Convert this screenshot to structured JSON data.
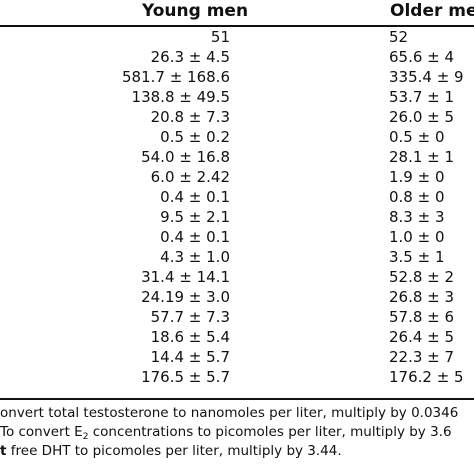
{
  "columns": {
    "young": "Young men",
    "older": "Older me"
  },
  "rows": [
    {
      "young": "51",
      "older": "52"
    },
    {
      "young": "26.3 ± 4.5",
      "older": "65.6 ± 4"
    },
    {
      "young": "581.7 ± 168.6",
      "older": "335.4 ± 9"
    },
    {
      "young": "138.8 ± 49.5",
      "older": "53.7 ± 1"
    },
    {
      "young": "20.8 ± 7.3",
      "older": "26.0 ± 5"
    },
    {
      "young": "0.5 ± 0.2",
      "older": "0.5 ± 0"
    },
    {
      "young": "54.0 ± 16.8",
      "older": "28.1 ± 1"
    },
    {
      "young": "6.0 ± 2.42",
      "older": "1.9 ± 0"
    },
    {
      "young": "0.4 ± 0.1",
      "older": "0.8 ± 0"
    },
    {
      "young": "9.5 ± 2.1",
      "older": "8.3 ± 3"
    },
    {
      "young": "0.4 ± 0.1",
      "older": "1.0 ± 0"
    },
    {
      "young": "4.3 ± 1.0",
      "older": "3.5 ± 1"
    },
    {
      "young": "31.4 ± 14.1",
      "older": "52.8 ± 2"
    },
    {
      "young": "24.19 ± 3.0",
      "older": "26.8 ± 3"
    },
    {
      "young": "57.7 ± 7.3",
      "older": "57.8 ± 6"
    },
    {
      "young": "18.6 ± 5.4",
      "older": "26.4 ± 5"
    },
    {
      "young": "14.4 ± 5.7",
      "older": "22.3 ± 7"
    },
    {
      "young": "176.5 ± 5.7",
      "older": "176.2 ± 5"
    }
  ],
  "footnotes": {
    "line1": "onvert total testosterone to nanomoles per liter, multiply by 0.0346",
    "line2_pre": "To convert E",
    "line2_sub": "2",
    "line2_post": " concentrations to picomoles per liter, multiply by 3.6",
    "line3_bold": "t",
    "line3_rest": " free DHT to picomoles per liter, multiply by 3.44."
  }
}
